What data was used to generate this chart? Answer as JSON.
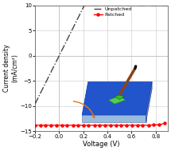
{
  "title": "",
  "xlabel": "Voltage (V)",
  "ylabel": "Current density\n(mA/cm²)",
  "xlim": [
    -0.2,
    0.9
  ],
  "ylim": [
    -15,
    10
  ],
  "xticks": [
    -0.2,
    0.0,
    0.2,
    0.4,
    0.6,
    0.8
  ],
  "yticks": [
    -15,
    -10,
    -5,
    0,
    5,
    10
  ],
  "background_color": "#ffffff",
  "grid_color": "#bbbbbb",
  "unpatched_color": "#444444",
  "patched_color": "#ff0000",
  "legend_unpatched": "Unpatched",
  "legend_patched": "Patched",
  "arrow_color": "#e07820",
  "solar_blue": "#2255cc",
  "solar_light": "#99bbdd",
  "solar_shadow": "#6688bb"
}
